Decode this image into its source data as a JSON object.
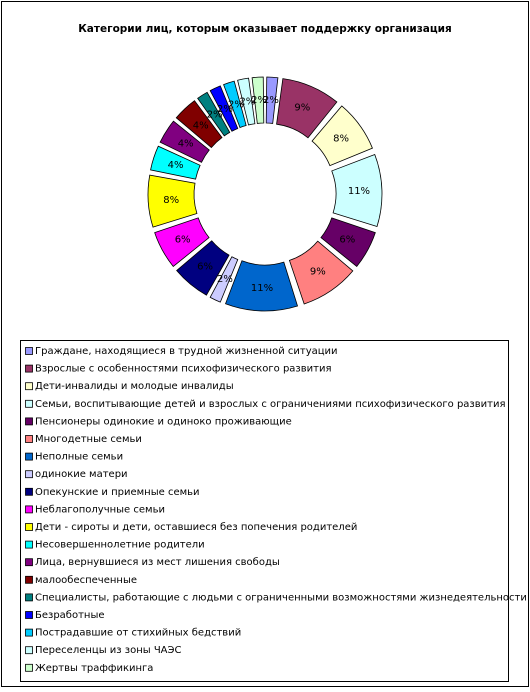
{
  "chart_data": {
    "type": "donut",
    "title": "Категории лиц, которым оказывает поддержку организация",
    "categories": [
      "Граждане, находящиеся в трудной жизненной ситуации",
      "Взрослые с особенностями психофизического развития",
      "Дети-инвалиды и молодые инвалиды",
      "Семьи, воспитывающие детей и взрослых с ограничениями психофизического развития",
      "Пенсионеры одинокие и одиноко проживающие",
      "Многодетные семьи",
      "Неполные семьи",
      "одинокие матери",
      "Опекунские и приемные семьи",
      "Неблагополучные семьи",
      "Дети - сироты и дети, оставшиеся без попечения родителей",
      "Несовершеннолетние родители",
      "Лица, вернувшиеся из мест лишения свободы",
      "малообеспеченные",
      "Специалисты, работающие с людьми с ограниченными возможностями жизнедеятельности",
      "Безработные",
      "Пострадавшие от стихийных бедствий",
      "Переселенцы из зоны ЧАЭС",
      "Жертвы траффикинга"
    ],
    "values": [
      2,
      9,
      8,
      11,
      6,
      9,
      11,
      2,
      6,
      6,
      8,
      4,
      4,
      4,
      2,
      2,
      2,
      2,
      2
    ],
    "value_labels": [
      "2%",
      "9%",
      "8%",
      "11%",
      "6%",
      "9%",
      "11%",
      "2%",
      "6%",
      "6%",
      "8%",
      "4%",
      "4%",
      "4%",
      "2%",
      "2%",
      "2%",
      "2%",
      "2%"
    ],
    "colors": [
      "#9999ff",
      "#993366",
      "#ffffcc",
      "#ccffff",
      "#660066",
      "#ff8080",
      "#0066cc",
      "#ccccff",
      "#000080",
      "#ff00ff",
      "#ffff00",
      "#00ffff",
      "#800080",
      "#800000",
      "#008080",
      "#0000ff",
      "#00ccff",
      "#ccffff",
      "#ccffcc"
    ]
  }
}
